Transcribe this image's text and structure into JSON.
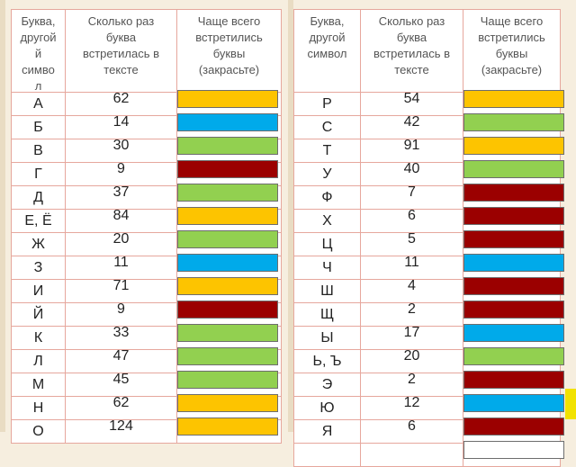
{
  "colors": {
    "yellow": "#fdc400",
    "blue": "#00aaea",
    "green": "#92d050",
    "darkred": "#9b0000",
    "white": "#ffffff"
  },
  "left_table": {
    "headers": {
      "letter": [
        "Буква,",
        "другой",
        "й",
        "симво",
        "л"
      ],
      "count": [
        "Сколько раз",
        "буква",
        "встретилась в",
        "тексте"
      ],
      "frequent": [
        "Чаще всего",
        "встретились",
        "буквы",
        "(закрасьте)"
      ]
    },
    "rows": [
      {
        "letter": "А",
        "count": "62",
        "color": "yellow"
      },
      {
        "letter": "Б",
        "count": "14",
        "color": "blue"
      },
      {
        "letter": "В",
        "count": "30",
        "color": "green"
      },
      {
        "letter": "Г",
        "count": "9",
        "color": "darkred"
      },
      {
        "letter": "Д",
        "count": "37",
        "color": "green"
      },
      {
        "letter": "Е, Ё",
        "count": "84",
        "color": "yellow"
      },
      {
        "letter": "Ж",
        "count": "20",
        "color": "green"
      },
      {
        "letter": "З",
        "count": "11",
        "color": "blue"
      },
      {
        "letter": "И",
        "count": "71",
        "color": "yellow"
      },
      {
        "letter": "Й",
        "count": "9",
        "color": "darkred"
      },
      {
        "letter": "К",
        "count": "33",
        "color": "green"
      },
      {
        "letter": "Л",
        "count": "47",
        "color": "green"
      },
      {
        "letter": "М",
        "count": "45",
        "color": "green"
      },
      {
        "letter": "Н",
        "count": "62",
        "color": "yellow"
      },
      {
        "letter": "О",
        "count": "124",
        "color": "yellow"
      }
    ]
  },
  "right_table": {
    "headers": {
      "letter": [
        "Буква,",
        "другой",
        "символ"
      ],
      "count": [
        "Сколько раз",
        "буква",
        "встретилась в",
        "тексте"
      ],
      "frequent": [
        "Чаще всего",
        "встретились",
        "буквы",
        "(закрасьте)"
      ]
    },
    "rows": [
      {
        "letter": "Р",
        "count": "54",
        "color": "yellow"
      },
      {
        "letter": "С",
        "count": "42",
        "color": "green"
      },
      {
        "letter": "Т",
        "count": "91",
        "color": "yellow"
      },
      {
        "letter": "У",
        "count": "40",
        "color": "green"
      },
      {
        "letter": "Ф",
        "count": "7",
        "color": "darkred"
      },
      {
        "letter": "Х",
        "count": "6",
        "color": "darkred"
      },
      {
        "letter": "Ц",
        "count": "5",
        "color": "darkred"
      },
      {
        "letter": "Ч",
        "count": "11",
        "color": "blue"
      },
      {
        "letter": "Ш",
        "count": "4",
        "color": "darkred"
      },
      {
        "letter": "Щ",
        "count": "2",
        "color": "darkred"
      },
      {
        "letter": "Ы",
        "count": "17",
        "color": "blue"
      },
      {
        "letter": "Ь, Ъ",
        "count": "20",
        "color": "green"
      },
      {
        "letter": "Э",
        "count": "2",
        "color": "darkred"
      },
      {
        "letter": "Ю",
        "count": "12",
        "color": "blue"
      },
      {
        "letter": "Я",
        "count": "6",
        "color": "darkred"
      },
      {
        "letter": "",
        "count": "",
        "color": "white"
      }
    ]
  }
}
